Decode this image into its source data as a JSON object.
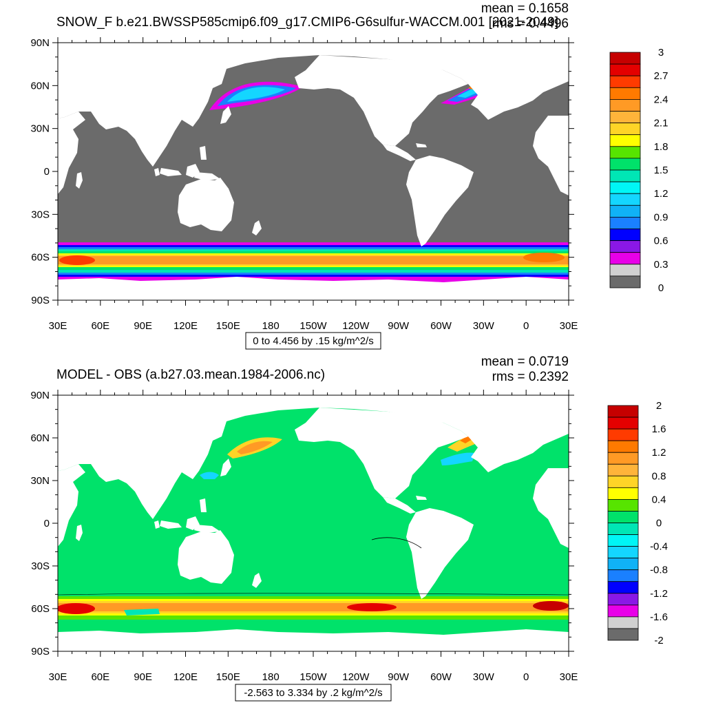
{
  "panels": [
    {
      "title": "SNOW_F b.e21.BWSSP585cmip6.f09_g17.CMIP6-G6sulfur-WACCM.001 [2021-2049]",
      "mean_label": "mean = 0.1658",
      "rms_label": "rms = 0.4496",
      "range_label": "0 to 4.456 by .15 kg/m^2/s",
      "colorbar": {
        "labels": [
          "3",
          "2.7",
          "2.4",
          "2.1",
          "1.8",
          "1.5",
          "1.2",
          "0.9",
          "0.6",
          "0.3",
          "0"
        ],
        "colors": [
          "#c60000",
          "#e40000",
          "#ff3b00",
          "#ff7a00",
          "#ff9a25",
          "#ffb43a",
          "#ffd427",
          "#ffff00",
          "#57e400",
          "#00e26a",
          "#00e6b5",
          "#00f6f6",
          "#14d6ff",
          "#10b2f6",
          "#1a80ff",
          "#0000ff",
          "#8a18e6",
          "#e800e8",
          "#d0d0d0",
          "#6b6b6b"
        ]
      }
    },
    {
      "title": "MODEL - OBS (a.b27.03.mean.1984-2006.nc)",
      "mean_label": "mean = 0.0719",
      "rms_label": "rms = 0.2392",
      "range_label": "-2.563 to 3.334 by .2 kg/m^2/s",
      "colorbar": {
        "labels": [
          "2",
          "1.6",
          "1.2",
          "0.8",
          "0.4",
          "0",
          "-0.4",
          "-0.8",
          "-1.2",
          "-1.6",
          "-2"
        ],
        "colors": [
          "#c60000",
          "#e40000",
          "#ff3b00",
          "#ff7a00",
          "#ff9a25",
          "#ffb43a",
          "#ffd427",
          "#ffff00",
          "#57e400",
          "#00e26a",
          "#00e6b5",
          "#00f6f6",
          "#14d6ff",
          "#10b2f6",
          "#1a80ff",
          "#0000ff",
          "#8a18e6",
          "#e800e8",
          "#d0d0d0",
          "#6b6b6b"
        ]
      }
    }
  ],
  "axes": {
    "lat_labels": [
      "90N",
      "60N",
      "30N",
      "0",
      "30S",
      "60S",
      "90S"
    ],
    "lon_labels": [
      "30E",
      "60E",
      "90E",
      "120E",
      "150E",
      "180",
      "150W",
      "120W",
      "90W",
      "60W",
      "30W",
      "0",
      "30E"
    ]
  },
  "colors": {
    "land": "#ffffff",
    "ocean_low": "#6b6b6b",
    "sea_ice": "#d0d0d0",
    "diff_zero": "#00e26a"
  }
}
